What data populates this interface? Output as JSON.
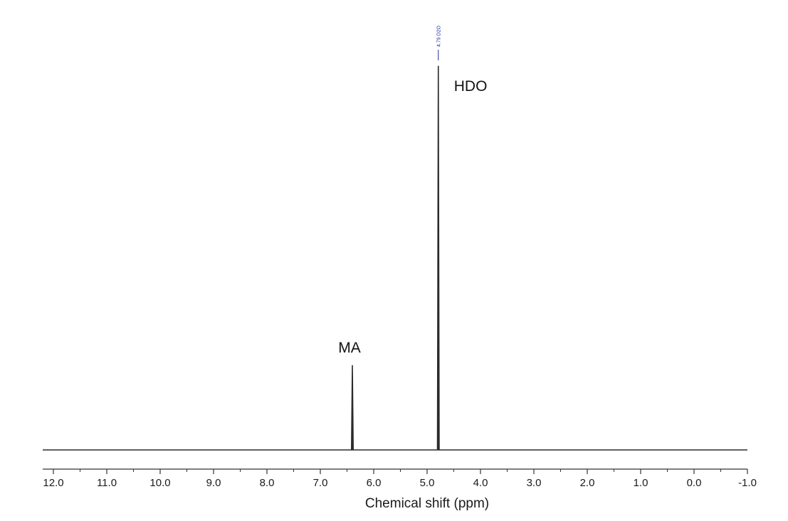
{
  "chart_data": {
    "type": "line",
    "x_label": "Chemical shift (ppm)",
    "x_range": [
      12.2,
      -1.0
    ],
    "x_reversed": true,
    "grid": false,
    "legend": "none",
    "major_ticks": [
      12.0,
      11.0,
      10.0,
      9.0,
      8.0,
      7.0,
      6.0,
      5.0,
      4.0,
      3.0,
      2.0,
      1.0,
      0.0,
      -1.0
    ],
    "tick_labels": [
      "12.0",
      "11.0",
      "10.0",
      "9.0",
      "8.0",
      "7.0",
      "6.0",
      "5.0",
      "4.0",
      "3.0",
      "2.0",
      "1.0",
      "0.0",
      "-1.0"
    ],
    "minor_tick_step": 0.5,
    "y_relative_max": 1.0,
    "peaks": [
      {
        "shift": 6.4,
        "relative_height": 0.22,
        "label": "MA"
      },
      {
        "shift": 4.79,
        "relative_height": 1.0,
        "label": "HDO"
      }
    ],
    "peak_pick": {
      "shift": 4.79,
      "label": "4.79 D2O"
    },
    "colors": {
      "spectrum": "#2b2b2b",
      "axis": "#333333",
      "peak_pick": "#1f2fa0"
    }
  }
}
